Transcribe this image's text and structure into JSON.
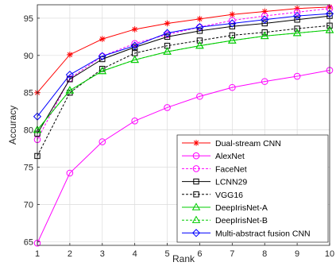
{
  "chart_data": {
    "type": "line",
    "title": "",
    "xlabel": "Rank",
    "ylabel": "Accuracy",
    "xlim": [
      1,
      10
    ],
    "ylim": [
      64.5,
      96.8
    ],
    "xticks": [
      "1",
      "2",
      "3",
      "4",
      "5",
      "6",
      "7",
      "8",
      "9",
      "10"
    ],
    "yticks": [
      "65",
      "70",
      "75",
      "80",
      "85",
      "90",
      "95"
    ],
    "grid": true,
    "legend_position": "bottom-right",
    "x": [
      1,
      2,
      3,
      4,
      5,
      6,
      7,
      8,
      9,
      10
    ],
    "series": [
      {
        "name": "Dual-stream CNN",
        "color": "#ff0000",
        "dash": "solid",
        "marker": "star",
        "values": [
          85.0,
          90.1,
          92.2,
          93.5,
          94.3,
          94.9,
          95.5,
          95.9,
          96.3,
          96.5
        ]
      },
      {
        "name": "AlexNet",
        "color": "#ff00ff",
        "dash": "solid",
        "marker": "circle",
        "values": [
          64.8,
          74.2,
          78.4,
          81.2,
          83.0,
          84.5,
          85.7,
          86.5,
          87.2,
          88.0
        ]
      },
      {
        "name": "FaceNet",
        "color": "#ff00ff",
        "dash": "dashed",
        "marker": "circle",
        "values": [
          78.7,
          86.9,
          89.9,
          91.6,
          92.8,
          93.8,
          94.7,
          95.3,
          95.8,
          96.3
        ]
      },
      {
        "name": "LCNN29",
        "color": "#000000",
        "dash": "solid",
        "marker": "square",
        "values": [
          79.5,
          86.8,
          89.5,
          91.1,
          92.5,
          93.3,
          93.9,
          94.3,
          94.8,
          95.3
        ]
      },
      {
        "name": "VGG16",
        "color": "#000000",
        "dash": "dashed",
        "marker": "square",
        "values": [
          76.5,
          85.0,
          88.2,
          90.3,
          91.3,
          92.0,
          92.7,
          93.1,
          93.6,
          94.0
        ]
      },
      {
        "name": "DeepIrisNet-A",
        "color": "#00cc00",
        "dash": "solid",
        "marker": "triangle",
        "values": [
          80.0,
          85.3,
          87.9,
          89.4,
          90.5,
          91.3,
          92.0,
          92.6,
          93.0,
          93.4
        ]
      },
      {
        "name": "DeepIrisNet-B",
        "color": "#00cc00",
        "dash": "dashed",
        "marker": "triangle",
        "values": [
          80.0,
          85.3,
          87.9,
          89.4,
          90.5,
          91.3,
          92.0,
          92.6,
          93.0,
          93.4
        ]
      },
      {
        "name": "Multi-abstract fusion CNN",
        "color": "#0000ff",
        "dash": "solid",
        "marker": "diamond",
        "values": [
          81.8,
          87.4,
          89.9,
          91.3,
          93.0,
          93.8,
          94.3,
          94.8,
          95.3,
          95.6
        ]
      }
    ]
  }
}
